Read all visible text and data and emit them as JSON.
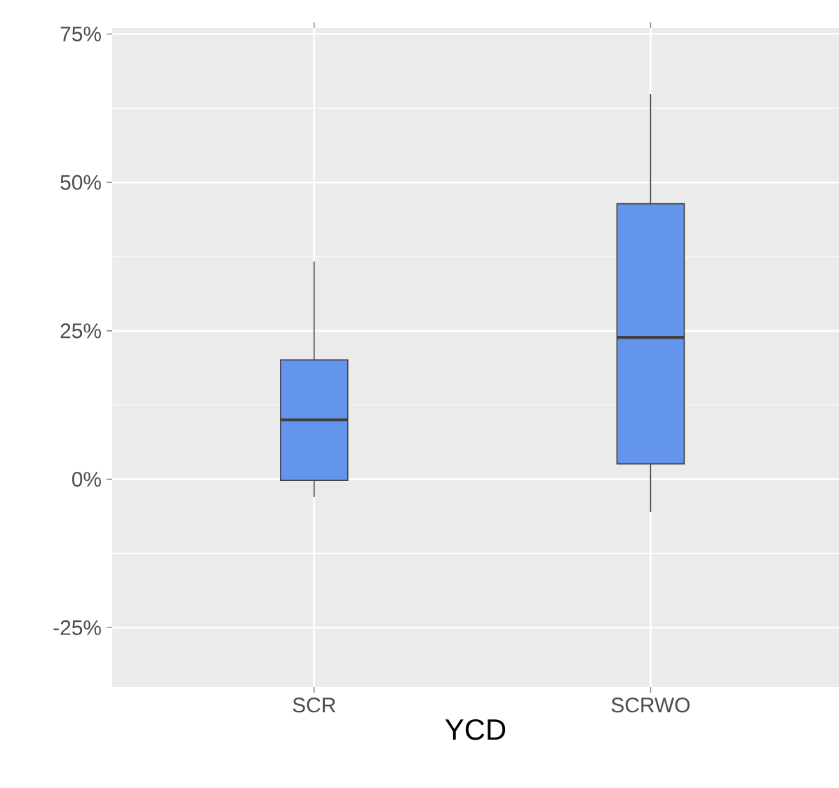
{
  "chart_data": {
    "type": "box",
    "xlabel": "YCD",
    "categories": [
      "SCR",
      "SCRWO"
    ],
    "boxes": [
      {
        "low": -3,
        "q1": -0.2,
        "median": 10,
        "q3": 20.1,
        "high": 36.7
      },
      {
        "low": -5.5,
        "q1": 2.6,
        "median": 23.9,
        "q3": 46.4,
        "high": 64.9
      }
    ],
    "color": "#6495ed",
    "ylim": [
      -35,
      76
    ],
    "yticks": [
      {
        "value": -25,
        "label": "-25%"
      },
      {
        "value": 0,
        "label": "0%"
      },
      {
        "value": 25,
        "label": "25%"
      },
      {
        "value": 50,
        "label": "50%"
      },
      {
        "value": 75,
        "label": "75%"
      }
    ],
    "grid": true
  }
}
